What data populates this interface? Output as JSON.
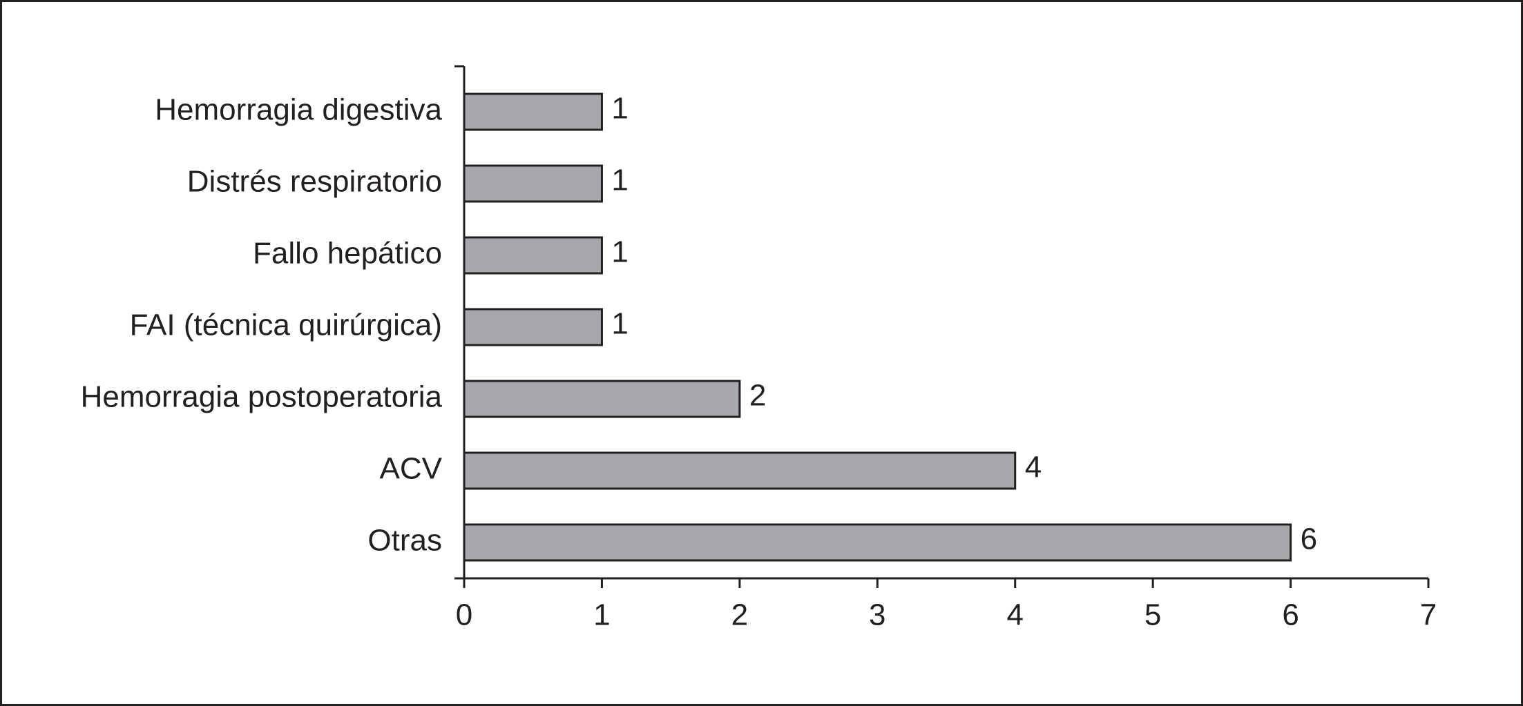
{
  "chart_data": {
    "type": "bar",
    "orientation": "horizontal",
    "categories": [
      "Hemorragia digestiva",
      "Distrés respiratorio",
      "Fallo hepático",
      "FAI (técnica quirúrgica)",
      "Hemorragia postoperatoria",
      "ACV",
      "Otras"
    ],
    "values": [
      1,
      1,
      1,
      1,
      2,
      4,
      6
    ],
    "color": "#a7a8ab",
    "xlim": [
      0,
      7
    ],
    "xticks": [
      0,
      1,
      2,
      3,
      4,
      5,
      6,
      7
    ],
    "grid": false
  }
}
